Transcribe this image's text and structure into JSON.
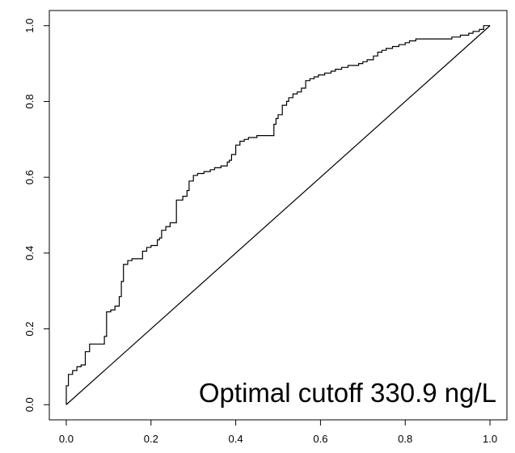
{
  "chart_data": {
    "type": "line",
    "title": "",
    "xlabel": "",
    "ylabel": "",
    "xlim": [
      -0.04,
      1.04
    ],
    "ylim": [
      -0.04,
      1.04
    ],
    "grid": false,
    "x_ticks": [
      0.0,
      0.2,
      0.4,
      0.6,
      0.8,
      1.0
    ],
    "x_tick_labels": [
      "0.0",
      "0.2",
      "0.4",
      "0.6",
      "0.8",
      "1.0"
    ],
    "y_ticks": [
      0.0,
      0.2,
      0.4,
      0.6,
      0.8,
      1.0
    ],
    "y_tick_labels": [
      "0.0",
      "0.2",
      "0.4",
      "0.6",
      "0.8",
      "1.0"
    ],
    "annotation": "Optimal cutoff 330.9 ng/L",
    "reference_line": {
      "x": [
        0,
        1
      ],
      "y": [
        0,
        1
      ]
    },
    "series": [
      {
        "x": [
          0.0,
          0.0,
          0.005,
          0.005,
          0.015,
          0.015,
          0.025,
          0.025,
          0.035,
          0.035,
          0.045,
          0.045,
          0.055,
          0.055,
          0.08,
          0.08,
          0.09,
          0.09,
          0.095,
          0.095,
          0.105,
          0.105,
          0.115,
          0.115,
          0.125,
          0.125,
          0.13,
          0.13,
          0.135,
          0.135,
          0.145,
          0.145,
          0.155,
          0.155,
          0.17,
          0.17,
          0.18,
          0.18,
          0.19,
          0.19,
          0.2,
          0.2,
          0.215,
          0.215,
          0.22,
          0.22,
          0.225,
          0.225,
          0.235,
          0.235,
          0.245,
          0.245,
          0.26,
          0.26,
          0.275,
          0.275,
          0.285,
          0.285,
          0.29,
          0.29,
          0.3,
          0.3,
          0.31,
          0.31,
          0.325,
          0.325,
          0.34,
          0.34,
          0.35,
          0.35,
          0.365,
          0.365,
          0.38,
          0.38,
          0.385,
          0.385,
          0.39,
          0.39,
          0.4,
          0.4,
          0.41,
          0.41,
          0.42,
          0.42,
          0.43,
          0.43,
          0.45,
          0.45,
          0.47,
          0.47,
          0.49,
          0.49,
          0.495,
          0.495,
          0.5,
          0.5,
          0.51,
          0.51,
          0.52,
          0.52,
          0.525,
          0.525,
          0.535,
          0.535,
          0.545,
          0.545,
          0.555,
          0.555,
          0.565,
          0.565,
          0.575,
          0.575,
          0.585,
          0.585,
          0.595,
          0.595,
          0.61,
          0.61,
          0.625,
          0.625,
          0.635,
          0.635,
          0.65,
          0.65,
          0.665,
          0.665,
          0.69,
          0.69,
          0.7,
          0.7,
          0.71,
          0.71,
          0.725,
          0.725,
          0.735,
          0.735,
          0.745,
          0.745,
          0.755,
          0.755,
          0.77,
          0.77,
          0.785,
          0.785,
          0.8,
          0.8,
          0.81,
          0.81,
          0.825,
          0.825,
          0.86,
          0.86,
          0.91,
          0.91,
          0.93,
          0.93,
          0.95,
          0.95,
          0.96,
          0.96,
          0.975,
          0.975,
          0.985,
          0.985,
          1.0,
          1.0
        ],
        "y": [
          0.0,
          0.05,
          0.05,
          0.08,
          0.08,
          0.09,
          0.09,
          0.1,
          0.1,
          0.105,
          0.105,
          0.14,
          0.14,
          0.16,
          0.16,
          0.16,
          0.16,
          0.18,
          0.18,
          0.245,
          0.245,
          0.25,
          0.25,
          0.26,
          0.26,
          0.285,
          0.285,
          0.325,
          0.325,
          0.37,
          0.37,
          0.38,
          0.38,
          0.385,
          0.385,
          0.385,
          0.385,
          0.405,
          0.405,
          0.415,
          0.415,
          0.42,
          0.42,
          0.435,
          0.435,
          0.44,
          0.44,
          0.46,
          0.46,
          0.47,
          0.47,
          0.48,
          0.48,
          0.54,
          0.54,
          0.55,
          0.55,
          0.565,
          0.565,
          0.59,
          0.59,
          0.605,
          0.605,
          0.61,
          0.61,
          0.615,
          0.615,
          0.62,
          0.62,
          0.625,
          0.625,
          0.63,
          0.63,
          0.64,
          0.64,
          0.645,
          0.645,
          0.66,
          0.66,
          0.685,
          0.685,
          0.695,
          0.695,
          0.7,
          0.7,
          0.705,
          0.705,
          0.71,
          0.71,
          0.71,
          0.71,
          0.74,
          0.74,
          0.755,
          0.755,
          0.765,
          0.765,
          0.79,
          0.79,
          0.8,
          0.8,
          0.81,
          0.81,
          0.82,
          0.82,
          0.825,
          0.825,
          0.835,
          0.835,
          0.855,
          0.855,
          0.86,
          0.86,
          0.865,
          0.865,
          0.87,
          0.87,
          0.875,
          0.875,
          0.88,
          0.88,
          0.885,
          0.885,
          0.89,
          0.89,
          0.895,
          0.895,
          0.9,
          0.9,
          0.905,
          0.905,
          0.91,
          0.91,
          0.92,
          0.92,
          0.93,
          0.93,
          0.935,
          0.935,
          0.94,
          0.94,
          0.945,
          0.945,
          0.95,
          0.95,
          0.955,
          0.955,
          0.96,
          0.96,
          0.965,
          0.965,
          0.965,
          0.965,
          0.97,
          0.97,
          0.975,
          0.975,
          0.98,
          0.98,
          0.985,
          0.985,
          0.99,
          0.99,
          1.0,
          1.0,
          1.0
        ]
      }
    ]
  }
}
